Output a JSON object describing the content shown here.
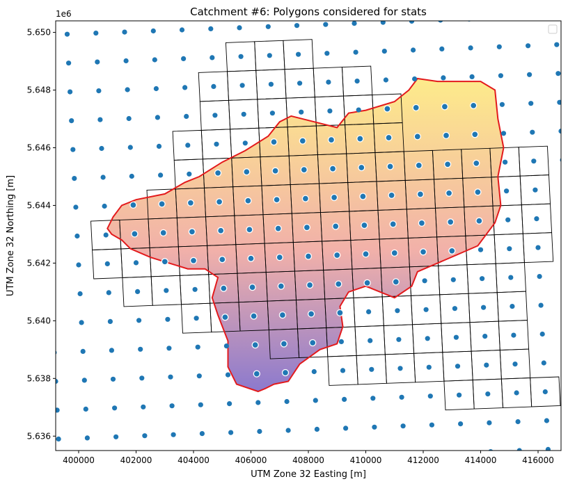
{
  "chart_data": {
    "type": "scatter",
    "title": "Catchment #6: Polygons considered for stats",
    "xlabel": "UTM Zone 32 Easting [m]",
    "ylabel": "UTM Zone 32 Northing [m]",
    "y_offset_label": "1e6",
    "xlim": [
      399200,
      416800
    ],
    "ylim": [
      5.6355,
      5.6504
    ],
    "x_ticks": [
      {
        "value": 400000,
        "label": "400000"
      },
      {
        "value": 402000,
        "label": "402000"
      },
      {
        "value": 404000,
        "label": "404000"
      },
      {
        "value": 406000,
        "label": "406000"
      },
      {
        "value": 408000,
        "label": "408000"
      },
      {
        "value": 410000,
        "label": "410000"
      },
      {
        "value": 412000,
        "label": "412000"
      },
      {
        "value": 414000,
        "label": "414000"
      },
      {
        "value": 416000,
        "label": "416000"
      }
    ],
    "y_ticks": [
      {
        "value": 5.636,
        "label": "5.636"
      },
      {
        "value": 5.638,
        "label": "5.638"
      },
      {
        "value": 5.64,
        "label": "5.640"
      },
      {
        "value": 5.642,
        "label": "5.642"
      },
      {
        "value": 5.644,
        "label": "5.644"
      },
      {
        "value": 5.646,
        "label": "5.646"
      },
      {
        "value": 5.648,
        "label": "5.648"
      },
      {
        "value": 5.65,
        "label": "5.650"
      }
    ],
    "legend": "top-right (empty)",
    "grid": false,
    "colors": {
      "points": "#1f77b4",
      "inside_point_edge": "#ffffff",
      "grid_cells": "#000000",
      "catchment_outline": "#e31a1c",
      "fill_gradient_top": "#fde97e",
      "fill_gradient_mid": "#f0a8a0",
      "fill_gradient_bottom": "#7f6bc8"
    },
    "point_grid": {
      "description": "regular station grid, ~1000 m spacing, slightly rotated",
      "origin_x": 399300,
      "origin_y": 5.6359,
      "step_x": 1000,
      "step_y": 0.001,
      "columns": 19,
      "rows": 15,
      "x_shift_per_row": -50,
      "y_shift_per_col": 3.75e-05
    },
    "catchment_polygon": [
      [
        406250,
        5.63755
      ],
      [
        405500,
        5.6378
      ],
      [
        405200,
        5.6384
      ],
      [
        405200,
        5.6393
      ],
      [
        404850,
        5.6402
      ],
      [
        404650,
        5.6408
      ],
      [
        404850,
        5.6415
      ],
      [
        404400,
        5.6418
      ],
      [
        403800,
        5.6418
      ],
      [
        402500,
        5.6422
      ],
      [
        401800,
        5.6425
      ],
      [
        401500,
        5.6428
      ],
      [
        401150,
        5.643
      ],
      [
        401000,
        5.6432
      ],
      [
        401200,
        5.6436
      ],
      [
        401500,
        5.644
      ],
      [
        402000,
        5.6442
      ],
      [
        403000,
        5.6444
      ],
      [
        403700,
        5.6448
      ],
      [
        404200,
        5.645
      ],
      [
        405000,
        5.6455
      ],
      [
        405800,
        5.6459
      ],
      [
        406600,
        5.6464
      ],
      [
        407000,
        5.6469
      ],
      [
        407400,
        5.6471
      ],
      [
        408200,
        5.6469
      ],
      [
        409000,
        5.6467
      ],
      [
        409400,
        5.6472
      ],
      [
        410000,
        5.6473
      ],
      [
        411000,
        5.6476
      ],
      [
        411500,
        5.648
      ],
      [
        411800,
        5.6484
      ],
      [
        412500,
        5.6483
      ],
      [
        413300,
        5.6483
      ],
      [
        414000,
        5.6483
      ],
      [
        414500,
        5.648
      ],
      [
        414600,
        5.647
      ],
      [
        414800,
        5.646
      ],
      [
        414600,
        5.645
      ],
      [
        414700,
        5.644
      ],
      [
        414500,
        5.6434
      ],
      [
        413900,
        5.6426
      ],
      [
        413200,
        5.6423
      ],
      [
        412500,
        5.642
      ],
      [
        411800,
        5.6417
      ],
      [
        411600,
        5.6412
      ],
      [
        411000,
        5.6408
      ],
      [
        410500,
        5.641
      ],
      [
        410000,
        5.6412
      ],
      [
        409400,
        5.641
      ],
      [
        409100,
        5.6405
      ],
      [
        409200,
        5.6398
      ],
      [
        409000,
        5.6392
      ],
      [
        408400,
        5.639
      ],
      [
        407700,
        5.6385
      ],
      [
        407300,
        5.6379
      ],
      [
        406800,
        5.6378
      ],
      [
        406500,
        5.63765
      ],
      [
        406250,
        5.63755
      ]
    ],
    "grid_cells": {
      "description": "cells (ix, iy) of 1000 m x 0.001 grid intersecting catchment",
      "cells": [
        [
          6,
          0
        ],
        [
          7,
          0
        ],
        [
          8,
          0
        ],
        [
          5,
          1
        ],
        [
          6,
          1
        ],
        [
          7,
          1
        ],
        [
          8,
          1
        ],
        [
          9,
          1
        ],
        [
          10,
          1
        ],
        [
          5,
          2
        ],
        [
          6,
          2
        ],
        [
          7,
          2
        ],
        [
          8,
          2
        ],
        [
          9,
          2
        ],
        [
          10,
          2
        ],
        [
          11,
          2
        ],
        [
          4,
          3
        ],
        [
          5,
          3
        ],
        [
          6,
          3
        ],
        [
          7,
          3
        ],
        [
          8,
          3
        ],
        [
          9,
          3
        ],
        [
          10,
          3
        ],
        [
          11,
          3
        ],
        [
          4,
          4
        ],
        [
          5,
          4
        ],
        [
          6,
          4
        ],
        [
          7,
          4
        ],
        [
          8,
          4
        ],
        [
          9,
          4
        ],
        [
          10,
          4
        ],
        [
          11,
          4
        ],
        [
          12,
          4
        ],
        [
          13,
          4
        ],
        [
          14,
          4
        ],
        [
          15,
          4
        ],
        [
          16,
          4
        ],
        [
          3,
          5
        ],
        [
          4,
          5
        ],
        [
          5,
          5
        ],
        [
          6,
          5
        ],
        [
          7,
          5
        ],
        [
          8,
          5
        ],
        [
          9,
          5
        ],
        [
          10,
          5
        ],
        [
          11,
          5
        ],
        [
          12,
          5
        ],
        [
          13,
          5
        ],
        [
          14,
          5
        ],
        [
          15,
          5
        ],
        [
          16,
          5
        ],
        [
          1,
          6
        ],
        [
          2,
          6
        ],
        [
          3,
          6
        ],
        [
          4,
          6
        ],
        [
          5,
          6
        ],
        [
          6,
          6
        ],
        [
          7,
          6
        ],
        [
          8,
          6
        ],
        [
          9,
          6
        ],
        [
          10,
          6
        ],
        [
          11,
          6
        ],
        [
          12,
          6
        ],
        [
          13,
          6
        ],
        [
          14,
          6
        ],
        [
          15,
          6
        ],
        [
          16,
          6
        ],
        [
          1,
          7
        ],
        [
          2,
          7
        ],
        [
          3,
          7
        ],
        [
          4,
          7
        ],
        [
          5,
          7
        ],
        [
          6,
          7
        ],
        [
          7,
          7
        ],
        [
          8,
          7
        ],
        [
          9,
          7
        ],
        [
          10,
          7
        ],
        [
          11,
          7
        ],
        [
          12,
          7
        ],
        [
          13,
          7
        ],
        [
          14,
          7
        ],
        [
          15,
          7
        ],
        [
          16,
          7
        ],
        [
          2,
          8
        ],
        [
          3,
          8
        ],
        [
          4,
          8
        ],
        [
          5,
          8
        ],
        [
          6,
          8
        ],
        [
          7,
          8
        ],
        [
          8,
          8
        ],
        [
          9,
          8
        ],
        [
          10,
          8
        ],
        [
          11,
          8
        ],
        [
          12,
          8
        ],
        [
          13,
          8
        ],
        [
          14,
          8
        ],
        [
          15,
          8
        ],
        [
          4,
          9
        ],
        [
          5,
          9
        ],
        [
          6,
          9
        ],
        [
          7,
          9
        ],
        [
          8,
          9
        ],
        [
          9,
          9
        ],
        [
          10,
          9
        ],
        [
          11,
          9
        ],
        [
          12,
          9
        ],
        [
          13,
          9
        ],
        [
          14,
          9
        ],
        [
          15,
          9
        ],
        [
          7,
          10
        ],
        [
          8,
          10
        ],
        [
          9,
          10
        ],
        [
          10,
          10
        ],
        [
          11,
          10
        ],
        [
          12,
          10
        ],
        [
          13,
          10
        ],
        [
          14,
          10
        ],
        [
          15,
          10
        ],
        [
          9,
          11
        ],
        [
          10,
          11
        ],
        [
          11,
          11
        ],
        [
          12,
          11
        ],
        [
          13,
          11
        ],
        [
          14,
          11
        ],
        [
          15,
          11
        ],
        [
          13,
          12
        ],
        [
          14,
          12
        ],
        [
          15,
          12
        ],
        [
          16,
          12
        ]
      ]
    }
  }
}
